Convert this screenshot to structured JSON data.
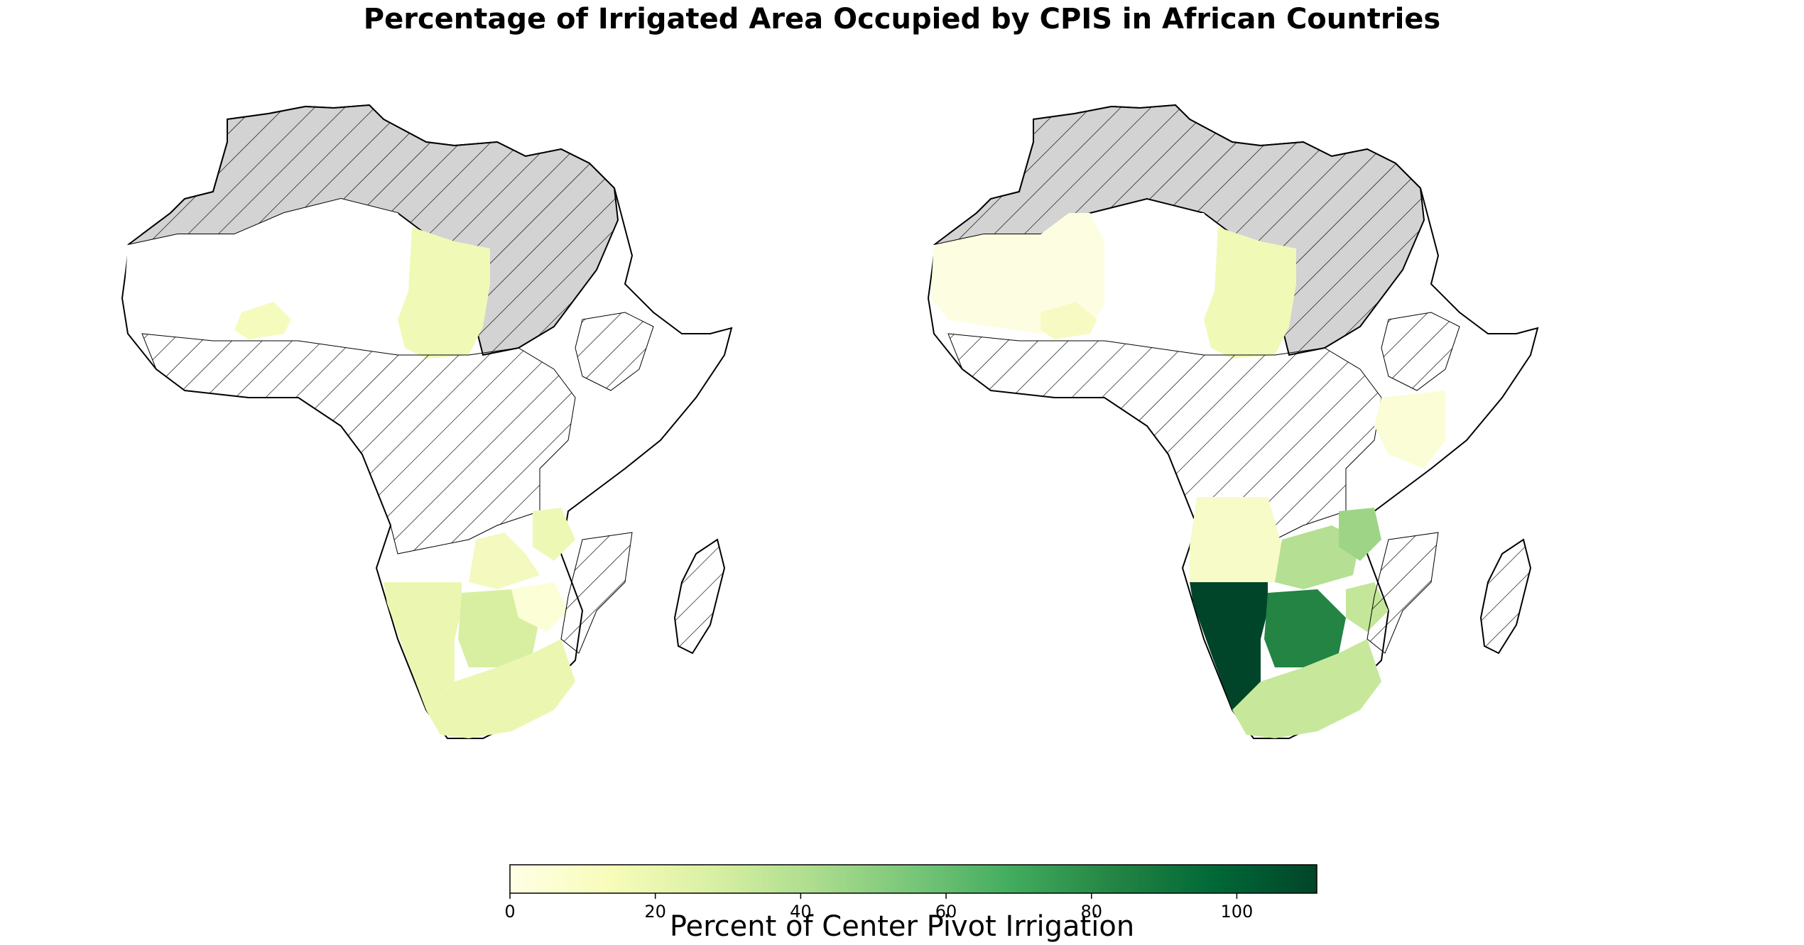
{
  "title": "Percentage of Irrigated Area Occupied by CPIS in African Countries",
  "colorbar": {
    "label": "Percent of Center Pivot Irrigation",
    "min": 0,
    "max": 111,
    "ticks": [
      "0",
      "20",
      "40",
      "60",
      "80",
      "100"
    ],
    "colormap": "YlGn",
    "stops": [
      "#ffffe5",
      "#f7fcb9",
      "#d9f0a3",
      "#addd8e",
      "#78c679",
      "#41ab5d",
      "#238443",
      "#006837",
      "#004529"
    ]
  },
  "legend_semantics": {
    "gray_hatched": "#d3d3d3",
    "white_hatched": "#ffffff",
    "no_data": "#ffffff"
  },
  "chart_data": {
    "type": "choropleth",
    "maps": [
      {
        "panel": "left",
        "regions": [
          {
            "country": "Chad",
            "value": 10
          },
          {
            "country": "Burkina Faso",
            "value": 11
          },
          {
            "country": "Namibia",
            "value": 16
          },
          {
            "country": "Botswana",
            "value": 24
          },
          {
            "country": "South Africa",
            "value": 17
          },
          {
            "country": "Zambia",
            "value": 8
          },
          {
            "country": "Malawi",
            "value": 12
          },
          {
            "country": "Zimbabwe",
            "value": 4
          },
          {
            "country": "Mozambique",
            "value": 5
          }
        ]
      },
      {
        "panel": "right",
        "regions": [
          {
            "country": "Mali",
            "value": 2
          },
          {
            "country": "Mauritania",
            "value": 3
          },
          {
            "country": "Burkina Faso",
            "value": 8
          },
          {
            "country": "Chad",
            "value": 10
          },
          {
            "country": "Kenya",
            "value": 5
          },
          {
            "country": "Angola",
            "value": 6
          },
          {
            "country": "Namibia",
            "value": 111
          },
          {
            "country": "Botswana",
            "value": 85
          },
          {
            "country": "Zambia",
            "value": 30
          },
          {
            "country": "Malawi",
            "value": 38
          },
          {
            "country": "Zimbabwe",
            "value": 26
          },
          {
            "country": "South Africa",
            "value": 27
          },
          {
            "country": "Mozambique",
            "value": 4
          }
        ]
      }
    ]
  }
}
